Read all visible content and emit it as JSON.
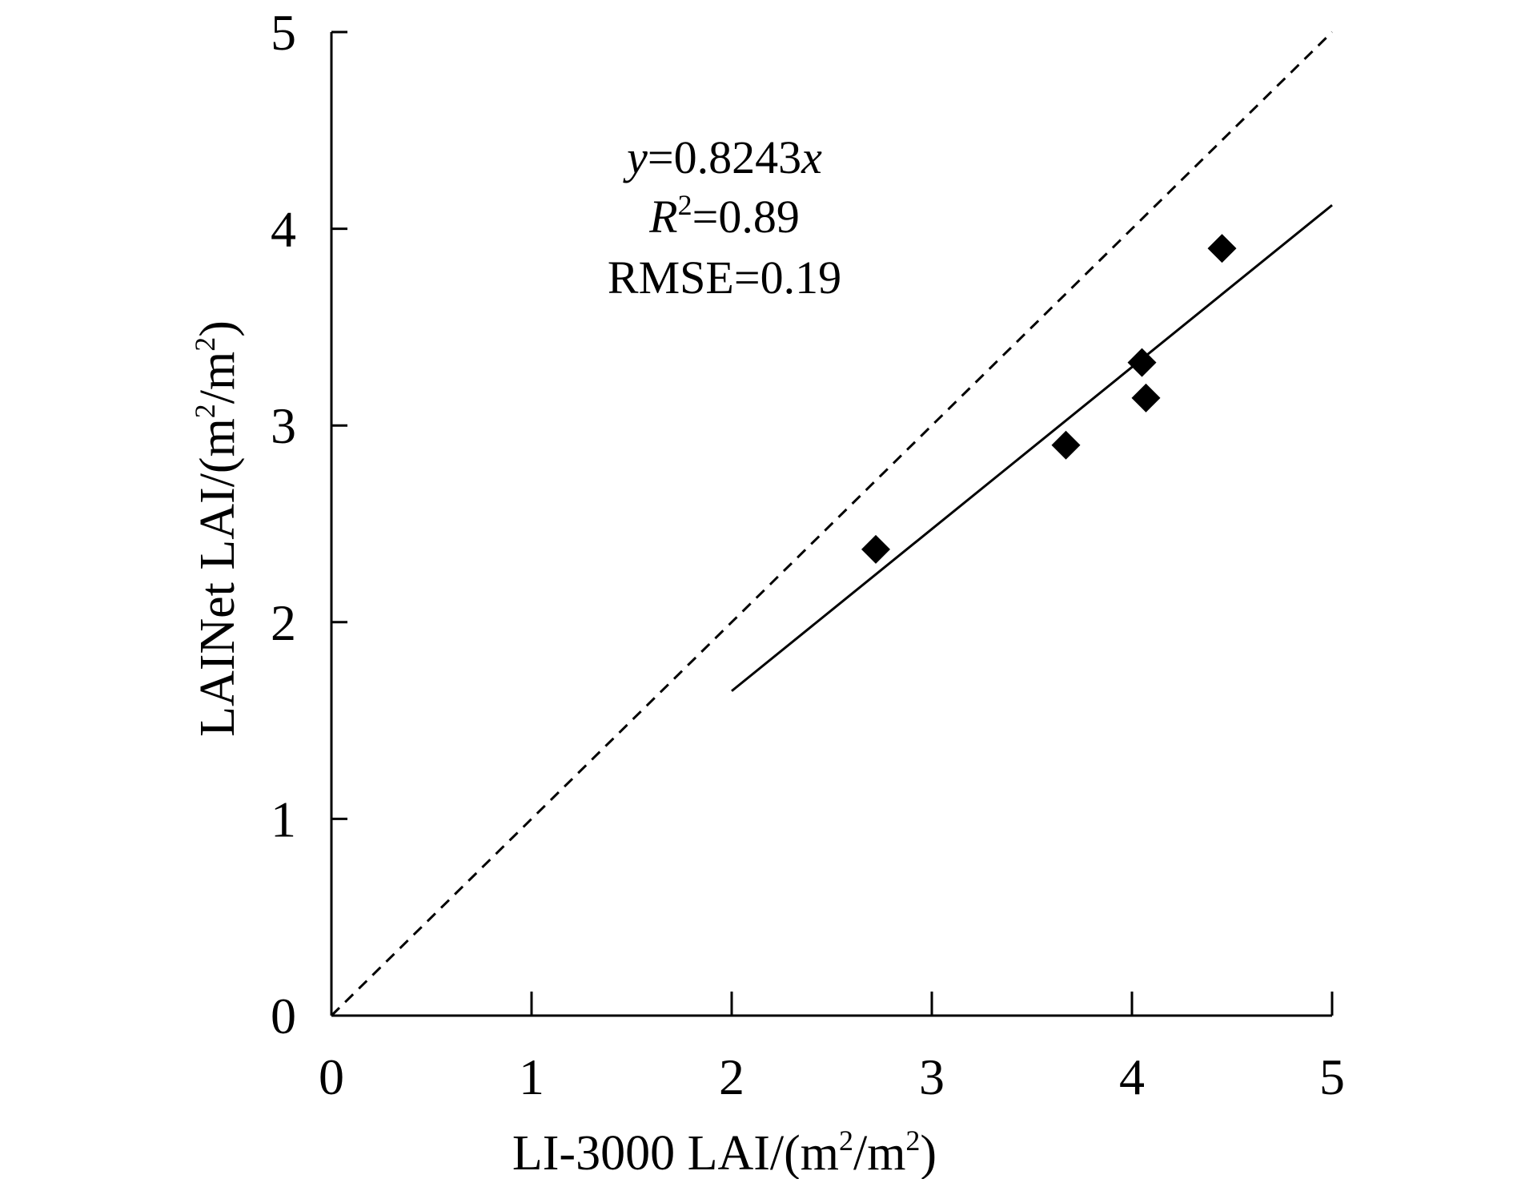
{
  "chart_data": {
    "type": "scatter",
    "xlabel": {
      "main": "LI-3000 LAI/(m",
      "sup1": "2",
      "mid": "/m",
      "sup2": "2",
      "end": ")"
    },
    "ylabel": {
      "main": "LAINet LAI/(m",
      "sup1": "2",
      "mid": "/m",
      "sup2": "2",
      "end": ")"
    },
    "xlim": [
      0,
      5
    ],
    "ylim": [
      0,
      5
    ],
    "xticks": [
      0,
      1,
      2,
      3,
      4,
      5
    ],
    "yticks": [
      0,
      1,
      2,
      3,
      4,
      5
    ],
    "xtick_labels": [
      "0",
      "1",
      "2",
      "3",
      "4",
      "5"
    ],
    "ytick_labels": [
      "0",
      "1",
      "2",
      "3",
      "4",
      "5"
    ],
    "grid": false,
    "series": [
      {
        "name": "LAI samples",
        "marker": "diamond",
        "color": "#000000",
        "x": [
          2.72,
          3.67,
          4.05,
          4.07,
          4.45
        ],
        "y": [
          2.37,
          2.9,
          3.32,
          3.14,
          3.9
        ]
      }
    ],
    "lines": [
      {
        "name": "regression",
        "style": "solid",
        "x": [
          2.0,
          5.0
        ],
        "y": [
          1.65,
          4.12
        ]
      },
      {
        "name": "one-to-one",
        "style": "dashed",
        "x": [
          0,
          5.0
        ],
        "y": [
          0,
          5.0
        ]
      }
    ],
    "annotation": {
      "eq_var_y": "y",
      "eq_rest": "=0.8243",
      "eq_var_x": "x",
      "r2_var": "R",
      "r2_sup": "2",
      "r2_rest": "=0.89",
      "rmse": "RMSE=0.19"
    }
  }
}
